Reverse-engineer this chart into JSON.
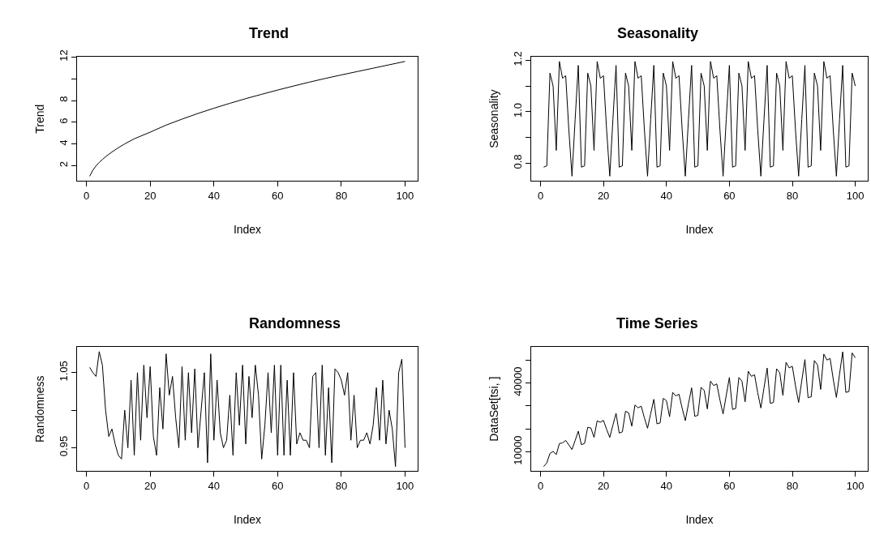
{
  "chart_data": [
    {
      "type": "line",
      "title": "Trend",
      "xlabel": "Index",
      "ylabel": "Trend",
      "marker": "none",
      "line_style": "solid",
      "xlim": [
        -2.96,
        103.96
      ],
      "xticks": [
        0,
        20,
        40,
        60,
        80,
        100
      ],
      "ylim": [
        0.63,
        12.02
      ],
      "yticks": [
        2,
        4,
        6,
        8,
        {
          "value": 10,
          "label": null
        },
        12
      ],
      "x": [
        1,
        2,
        3,
        4,
        5,
        6,
        8,
        10,
        12,
        15,
        20,
        25,
        30,
        35,
        40,
        45,
        50,
        55,
        60,
        65,
        70,
        75,
        80,
        85,
        90,
        95,
        100
      ],
      "series": [
        {
          "color": "#000000",
          "values": [
            1.05,
            1.6,
            2.0,
            2.32,
            2.59,
            2.84,
            3.28,
            3.67,
            4.02,
            4.49,
            5.1,
            5.75,
            6.3,
            6.82,
            7.3,
            7.75,
            8.18,
            8.58,
            8.97,
            9.34,
            9.7,
            10.04,
            10.36,
            10.67,
            10.98,
            11.29,
            11.6
          ]
        }
      ]
    },
    {
      "type": "line",
      "title": "Seasonality",
      "xlabel": "Index",
      "ylabel": "Seasonality",
      "marker": "none",
      "line_style": "solid",
      "xlim": [
        -2.96,
        103.96
      ],
      "xticks": [
        0,
        20,
        40,
        60,
        80,
        100
      ],
      "ylim": [
        0.732,
        1.213
      ],
      "yticks": [
        0.8,
        {
          "value": 0.9,
          "label": null
        },
        {
          "value": 1.0,
          "label": "1.0"
        },
        {
          "value": 1.1,
          "label": null
        },
        1.2
      ],
      "x": [
        1,
        2,
        3,
        4,
        5,
        6,
        7,
        8,
        9,
        10,
        11,
        12,
        13,
        14,
        15,
        16,
        17,
        18,
        19,
        20,
        21,
        22,
        23,
        24,
        25,
        26,
        27,
        28,
        29,
        30,
        31,
        32,
        33,
        34,
        35,
        36,
        37,
        38,
        39,
        40,
        41,
        42,
        43,
        44,
        45,
        46,
        47,
        48,
        49,
        50,
        51,
        52,
        53,
        54,
        55,
        56,
        57,
        58,
        59,
        60,
        61,
        62,
        63,
        64,
        65,
        66,
        67,
        68,
        69,
        70,
        71,
        72,
        73,
        74,
        75,
        76,
        77,
        78,
        79,
        80,
        81,
        82,
        83,
        84,
        85,
        86,
        87,
        88,
        89,
        90,
        91,
        92,
        93,
        94,
        95,
        96,
        97,
        98,
        99,
        100
      ],
      "series": [
        {
          "color": "#000000",
          "values": [
            0.785,
            0.79,
            1.15,
            1.1,
            0.85,
            1.195,
            1.13,
            1.14,
            0.93,
            0.75,
            0.97,
            1.18,
            0.785,
            0.79,
            1.15,
            1.1,
            0.85,
            1.195,
            1.13,
            1.14,
            0.93,
            0.75,
            0.97,
            1.18,
            0.785,
            0.79,
            1.15,
            1.1,
            0.85,
            1.195,
            1.13,
            1.14,
            0.93,
            0.75,
            0.97,
            1.18,
            0.785,
            0.79,
            1.15,
            1.1,
            0.85,
            1.195,
            1.13,
            1.14,
            0.93,
            0.75,
            0.97,
            1.18,
            0.785,
            0.79,
            1.15,
            1.1,
            0.85,
            1.195,
            1.13,
            1.14,
            0.93,
            0.75,
            0.97,
            1.18,
            0.785,
            0.79,
            1.15,
            1.1,
            0.85,
            1.195,
            1.13,
            1.14,
            0.93,
            0.75,
            0.97,
            1.18,
            0.785,
            0.79,
            1.15,
            1.1,
            0.85,
            1.195,
            1.13,
            1.14,
            0.93,
            0.75,
            0.97,
            1.18,
            0.785,
            0.79,
            1.15,
            1.1,
            0.85,
            1.195,
            1.13,
            1.14,
            0.93,
            0.75,
            0.97,
            1.18,
            0.785,
            0.79,
            1.15,
            1.1
          ]
        }
      ]
    },
    {
      "type": "line",
      "title": "Randomness",
      "xlabel": "Index",
      "ylabel": "Randomness",
      "marker": "none",
      "line_style": "solid",
      "xlim": [
        -2.96,
        103.96
      ],
      "xticks": [
        0,
        20,
        40,
        60,
        80,
        100
      ],
      "ylim": [
        0.919,
        1.084
      ],
      "yticks": [
        0.95,
        {
          "value": 1.0,
          "label": null
        },
        1.05
      ],
      "x": [
        1,
        2,
        3,
        4,
        5,
        6,
        7,
        8,
        9,
        10,
        11,
        12,
        13,
        14,
        15,
        16,
        17,
        18,
        19,
        20,
        21,
        22,
        23,
        24,
        25,
        26,
        27,
        28,
        29,
        30,
        31,
        32,
        33,
        34,
        35,
        36,
        37,
        38,
        39,
        40,
        41,
        42,
        43,
        44,
        45,
        46,
        47,
        48,
        49,
        50,
        51,
        52,
        53,
        54,
        55,
        56,
        57,
        58,
        59,
        60,
        61,
        62,
        63,
        64,
        65,
        66,
        67,
        68,
        69,
        70,
        71,
        72,
        73,
        74,
        75,
        76,
        77,
        78,
        79,
        80,
        81,
        82,
        83,
        84,
        85,
        86,
        87,
        88,
        89,
        90,
        91,
        92,
        93,
        94,
        95,
        96,
        97,
        98,
        99,
        100
      ],
      "series": [
        {
          "color": "#000000",
          "values": [
            1.057,
            1.05,
            1.045,
            1.078,
            1.06,
            1.0,
            0.965,
            0.975,
            0.955,
            0.94,
            0.935,
            1.0,
            0.95,
            1.04,
            0.94,
            1.05,
            0.96,
            1.06,
            0.99,
            1.058,
            0.965,
            0.94,
            1.03,
            0.975,
            1.075,
            1.02,
            1.045,
            0.99,
            0.95,
            1.058,
            0.96,
            1.05,
            0.97,
            1.055,
            0.95,
            1.0,
            1.05,
            0.93,
            1.075,
            0.96,
            1.04,
            0.97,
            0.95,
            0.96,
            1.02,
            0.94,
            1.05,
            0.98,
            1.06,
            0.955,
            1.045,
            0.99,
            1.06,
            1.02,
            0.935,
            0.98,
            1.05,
            0.97,
            1.06,
            0.94,
            1.06,
            0.94,
            1.04,
            0.94,
            1.05,
            0.955,
            0.97,
            0.96,
            0.96,
            0.95,
            1.045,
            1.05,
            0.95,
            1.06,
            0.94,
            1.03,
            0.93,
            1.055,
            1.05,
            1.04,
            1.02,
            1.05,
            0.96,
            1.02,
            0.95,
            0.96,
            0.96,
            0.97,
            0.955,
            0.98,
            1.03,
            0.96,
            1.04,
            0.955,
            1.0,
            0.975,
            0.925,
            1.05,
            1.068,
            0.95
          ]
        }
      ]
    },
    {
      "type": "line",
      "title": "Time Series",
      "xlabel": "Index",
      "ylabel": "DataSet[tsi, ]",
      "marker": "none",
      "line_style": "solid",
      "xlim": [
        -2.96,
        103.96
      ],
      "xticks": [
        0,
        20,
        40,
        60,
        80,
        100
      ],
      "ylim": [
        1640,
        55640
      ],
      "yticks": [
        10000,
        {
          "value": 20000,
          "label": null
        },
        {
          "value": 30000,
          "label": null
        },
        40000,
        {
          "value": 50000,
          "label": null
        }
      ],
      "x": [
        1,
        2,
        3,
        4,
        5,
        6,
        7,
        8,
        9,
        10,
        11,
        12,
        13,
        14,
        15,
        16,
        17,
        18,
        19,
        20,
        21,
        22,
        23,
        24,
        25,
        26,
        27,
        28,
        29,
        30,
        31,
        32,
        33,
        34,
        35,
        36,
        37,
        38,
        39,
        40,
        41,
        42,
        43,
        44,
        45,
        46,
        47,
        48,
        49,
        50,
        51,
        52,
        53,
        54,
        55,
        56,
        57,
        58,
        59,
        60,
        61,
        62,
        63,
        64,
        65,
        66,
        67,
        68,
        69,
        70,
        71,
        72,
        73,
        74,
        75,
        76,
        77,
        78,
        79,
        80,
        81,
        82,
        83,
        84,
        85,
        86,
        87,
        88,
        89,
        90,
        91,
        92,
        93,
        94,
        95,
        96,
        97,
        98,
        99,
        100
      ],
      "series": [
        {
          "color": "#000000",
          "values": [
            3600,
            5200,
            9300,
            10200,
            8800,
            13600,
            13900,
            15000,
            13000,
            11000,
            14900,
            19000,
            13100,
            13700,
            20700,
            20400,
            16300,
            23500,
            22900,
            23700,
            19800,
            16300,
            21600,
            26800,
            18200,
            18700,
            27700,
            27000,
            21200,
            30400,
            29200,
            29900,
            24800,
            20300,
            26600,
            32900,
            22200,
            22600,
            33300,
            32300,
            25300,
            35900,
            34400,
            35100,
            29000,
            23600,
            30900,
            37900,
            25500,
            25900,
            38100,
            36800,
            28700,
            40800,
            38900,
            39600,
            32600,
            26500,
            34600,
            42400,
            28500,
            28900,
            42400,
            40800,
            31800,
            45100,
            42900,
            43600,
            35800,
            29100,
            37900,
            46500,
            31100,
            31500,
            46200,
            44500,
            34600,
            49000,
            46600,
            47300,
            38800,
            31500,
            41000,
            50200,
            33600,
            34000,
            49800,
            47900,
            37200,
            52600,
            50000,
            50700,
            41600,
            33700,
            43900,
            53600,
            35900,
            36300,
            53100,
            51000
          ]
        }
      ]
    }
  ]
}
